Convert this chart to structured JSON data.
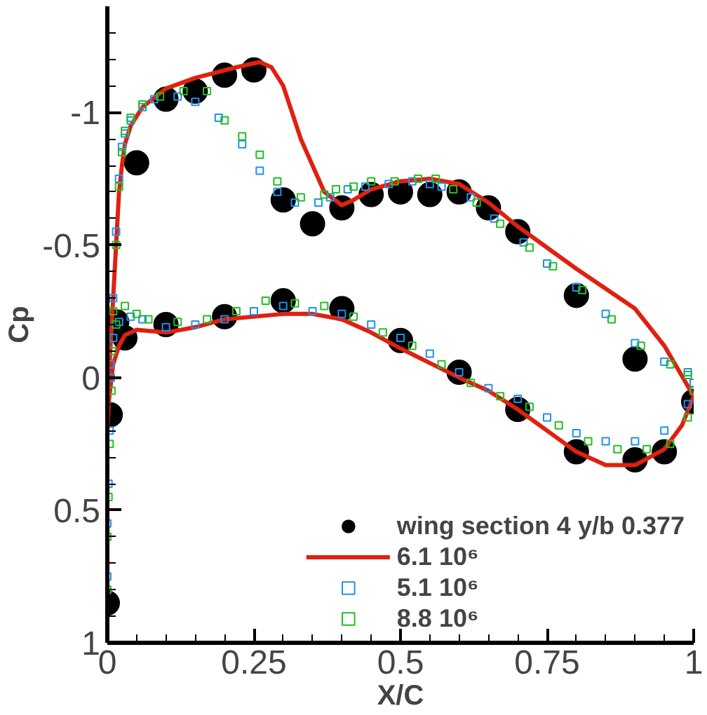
{
  "chart_data": {
    "type": "scatter",
    "xlabel": "X/C",
    "ylabel": "Cp",
    "xlim": [
      0,
      1
    ],
    "xticks": [
      0,
      {
        "value": 0.05,
        "label": null
      },
      {
        "value": 0.1,
        "label": null
      },
      {
        "value": 0.15,
        "label": null
      },
      {
        "value": 0.2,
        "label": null
      },
      0.25,
      {
        "value": 0.3,
        "label": null
      },
      {
        "value": 0.35,
        "label": null
      },
      {
        "value": 0.4,
        "label": null
      },
      {
        "value": 0.45,
        "label": null
      },
      0.5,
      {
        "value": 0.55,
        "label": null
      },
      {
        "value": 0.6,
        "label": null
      },
      {
        "value": 0.65,
        "label": null
      },
      {
        "value": 0.7,
        "label": null
      },
      0.75,
      {
        "value": 0.8,
        "label": null
      },
      {
        "value": 0.85,
        "label": null
      },
      {
        "value": 0.9,
        "label": null
      },
      {
        "value": 0.95,
        "label": null
      },
      1
    ],
    "ylim": [
      1,
      -1.4
    ],
    "yticks": [
      {
        "value": -1.3,
        "label": null
      },
      {
        "value": -1.2,
        "label": null
      },
      {
        "value": -1.1,
        "label": null
      },
      -1,
      {
        "value": -0.9,
        "label": null
      },
      {
        "value": -0.8,
        "label": null
      },
      {
        "value": -0.7,
        "label": null
      },
      {
        "value": -0.6,
        "label": null
      },
      -0.5,
      {
        "value": -0.4,
        "label": null
      },
      {
        "value": -0.3,
        "label": null
      },
      {
        "value": -0.2,
        "label": null
      },
      {
        "value": -0.1,
        "label": null
      },
      0,
      {
        "value": 0.1,
        "label": null
      },
      {
        "value": 0.2,
        "label": null
      },
      {
        "value": 0.3,
        "label": null
      },
      {
        "value": 0.4,
        "label": null
      },
      0.5,
      {
        "value": 0.6,
        "label": null
      },
      {
        "value": 0.7,
        "label": null
      },
      {
        "value": 0.8,
        "label": null
      },
      {
        "value": 0.9,
        "label": null
      },
      1
    ],
    "legend": "bottom right",
    "series": [
      {
        "name": "wing section 4 y/b 0.377",
        "marker": "circle",
        "color": "#000000",
        "x": [
          0,
          0.005,
          0.016,
          0.03,
          0.05,
          0.1,
          0.15,
          0.2,
          0.25,
          0.3,
          0.35,
          0.4,
          0.45,
          0.5,
          0.55,
          0.6,
          0.65,
          0.7,
          0.8,
          0.9,
          1.0,
          0.1,
          0.2,
          0.3,
          0.4,
          0.5,
          0.6,
          0.7,
          0.8,
          0.9,
          0.95
        ],
        "values": [
          0.85,
          0.14,
          -0.21,
          -0.15,
          -0.81,
          -1.05,
          -1.08,
          -1.14,
          -1.16,
          -0.67,
          -0.58,
          -0.64,
          -0.69,
          -0.7,
          -0.69,
          -0.7,
          -0.64,
          -0.55,
          -0.31,
          -0.07,
          0.09,
          -0.2,
          -0.23,
          -0.29,
          -0.26,
          -0.14,
          -0.02,
          0.12,
          0.28,
          0.31,
          0.28
        ]
      },
      {
        "name": "6.1 10⁶",
        "type": "line",
        "color": "#e02010",
        "x": [
          0.0,
          0.002,
          0.005,
          0.01,
          0.015,
          0.02,
          0.025,
          0.03,
          0.04,
          0.06,
          0.1,
          0.15,
          0.22,
          0.26,
          0.28,
          0.3,
          0.33,
          0.37,
          0.4,
          0.42,
          0.45,
          0.5,
          0.55,
          0.6,
          0.65,
          0.7,
          0.8,
          0.9,
          0.95,
          1.0
        ],
        "values": [
          0.2,
          0.05,
          -0.1,
          -0.3,
          -0.5,
          -0.7,
          -0.8,
          -0.88,
          -0.95,
          -1.02,
          -1.09,
          -1.13,
          -1.17,
          -1.19,
          -1.17,
          -1.1,
          -0.9,
          -0.7,
          -0.65,
          -0.67,
          -0.71,
          -0.74,
          -0.75,
          -0.73,
          -0.66,
          -0.57,
          -0.41,
          -0.26,
          -0.12,
          0.07
        ]
      },
      {
        "type": "line",
        "color": "#e02010",
        "x": [
          0.0,
          0.003,
          0.01,
          0.02,
          0.03,
          0.05,
          0.1,
          0.15,
          0.2,
          0.3,
          0.35,
          0.4,
          0.45,
          0.5,
          0.6,
          0.65,
          0.7,
          0.75,
          0.8,
          0.85,
          0.9,
          0.95,
          0.98,
          1.0
        ],
        "values": [
          0.2,
          0.08,
          -0.05,
          -0.12,
          -0.16,
          -0.18,
          -0.17,
          -0.19,
          -0.22,
          -0.24,
          -0.24,
          -0.22,
          -0.17,
          -0.11,
          0.0,
          0.05,
          0.12,
          0.2,
          0.28,
          0.33,
          0.33,
          0.27,
          0.18,
          0.07
        ]
      },
      {
        "name": "5.1 10⁶",
        "marker": "square",
        "color": "#2090f0",
        "x": [
          0.0,
          0.0,
          0.002,
          0.004,
          0.006,
          0.01,
          0.015,
          0.02,
          0.025,
          0.03,
          0.04,
          0.06,
          0.08,
          0.12,
          0.15,
          0.19,
          0.23,
          0.26,
          0.29,
          0.32,
          0.36,
          0.38,
          0.41,
          0.44,
          0.48,
          0.52,
          0.55,
          0.57,
          0.62,
          0.66,
          0.71,
          0.75,
          0.8,
          0.85,
          0.9,
          0.95,
          0.99,
          1.0,
          0.99,
          0.95,
          0.9,
          0.85,
          0.8,
          0.75,
          0.7,
          0.65,
          0.6,
          0.55,
          0.5,
          0.45,
          0.4,
          0.35,
          0.3,
          0.25,
          0.2,
          0.15,
          0.1,
          0.06,
          0.04,
          0.02,
          0.01,
          0.005
        ],
        "values": [
          0.75,
          0.55,
          0.4,
          0.2,
          0.0,
          -0.3,
          -0.55,
          -0.75,
          -0.87,
          -0.92,
          -0.97,
          -1.02,
          -1.05,
          -1.06,
          -1.04,
          -0.98,
          -0.88,
          -0.78,
          -0.7,
          -0.66,
          -0.66,
          -0.68,
          -0.71,
          -0.72,
          -0.73,
          -0.74,
          -0.73,
          -0.72,
          -0.68,
          -0.6,
          -0.51,
          -0.43,
          -0.34,
          -0.24,
          -0.13,
          -0.06,
          -0.02,
          0.02,
          0.1,
          0.2,
          0.24,
          0.24,
          0.21,
          0.15,
          0.08,
          0.04,
          -0.02,
          -0.09,
          -0.15,
          -0.2,
          -0.24,
          -0.25,
          -0.27,
          -0.25,
          -0.22,
          -0.2,
          -0.19,
          -0.22,
          -0.23,
          -0.21,
          -0.15,
          -0.05
        ]
      },
      {
        "name": "8.8 10⁶",
        "marker": "square",
        "color": "#20c020",
        "x": [
          0.0,
          0.0,
          0.002,
          0.004,
          0.007,
          0.01,
          0.015,
          0.02,
          0.025,
          0.03,
          0.04,
          0.06,
          0.09,
          0.13,
          0.17,
          0.2,
          0.23,
          0.26,
          0.29,
          0.33,
          0.37,
          0.39,
          0.42,
          0.45,
          0.49,
          0.53,
          0.56,
          0.59,
          0.63,
          0.67,
          0.72,
          0.76,
          0.81,
          0.86,
          0.91,
          0.96,
          0.99,
          1.0,
          0.99,
          0.96,
          0.92,
          0.87,
          0.82,
          0.77,
          0.72,
          0.67,
          0.62,
          0.57,
          0.52,
          0.47,
          0.42,
          0.37,
          0.32,
          0.27,
          0.22,
          0.17,
          0.12,
          0.07,
          0.05,
          0.03,
          0.015,
          0.008
        ],
        "values": [
          0.8,
          0.6,
          0.45,
          0.25,
          0.05,
          -0.25,
          -0.5,
          -0.72,
          -0.85,
          -0.93,
          -0.98,
          -1.03,
          -1.06,
          -1.08,
          -1.08,
          -0.97,
          -0.91,
          -0.84,
          -0.74,
          -0.68,
          -0.69,
          -0.71,
          -0.72,
          -0.74,
          -0.74,
          -0.75,
          -0.75,
          -0.71,
          -0.66,
          -0.58,
          -0.49,
          -0.42,
          -0.33,
          -0.22,
          -0.12,
          -0.05,
          -0.01,
          0.05,
          0.15,
          0.25,
          0.27,
          0.27,
          0.24,
          0.18,
          0.11,
          0.07,
          0.02,
          -0.05,
          -0.12,
          -0.17,
          -0.23,
          -0.27,
          -0.28,
          -0.29,
          -0.25,
          -0.22,
          -0.21,
          -0.22,
          -0.24,
          -0.27,
          -0.2,
          -0.1
        ]
      }
    ]
  }
}
